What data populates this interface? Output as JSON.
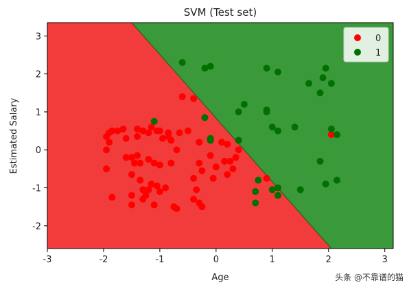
{
  "chart_data": {
    "type": "scatter",
    "title": "SVM (Test set)",
    "xlabel": "Age",
    "ylabel": "Estimated Salary",
    "xlim": [
      -3,
      3.15
    ],
    "ylim": [
      -2.6,
      3.35
    ],
    "xticks": [
      "-3",
      "-2",
      "-1",
      "0",
      "1",
      "2",
      "3"
    ],
    "xtick_values": [
      -3,
      -2,
      -1,
      0,
      1,
      2,
      3
    ],
    "yticks": [
      "-2",
      "-1",
      "0",
      "1",
      "2",
      "3"
    ],
    "ytick_values": [
      -2,
      -1,
      0,
      1,
      2,
      3
    ],
    "grid": false,
    "legend_position": "top-right",
    "decision_boundary": {
      "points": [
        [
          -1.5,
          3.35
        ],
        [
          2.05,
          -2.6
        ]
      ],
      "region_colors": {
        "0": "#f23b3b",
        "1": "#3a9a3a"
      }
    },
    "series": [
      {
        "name": "0",
        "color": "#ff0000",
        "points": [
          [
            -1.9,
            0.45
          ],
          [
            -1.85,
            0.5
          ],
          [
            -1.75,
            0.5
          ],
          [
            -1.65,
            0.55
          ],
          [
            -1.95,
            0.35
          ],
          [
            -1.9,
            0.2
          ],
          [
            -1.95,
            0.0
          ],
          [
            -1.6,
            0.3
          ],
          [
            -1.4,
            0.55
          ],
          [
            -1.4,
            0.35
          ],
          [
            -1.3,
            0.5
          ],
          [
            -1.2,
            0.45
          ],
          [
            -1.15,
            0.6
          ],
          [
            -1.05,
            0.5
          ],
          [
            -1.0,
            0.5
          ],
          [
            -0.95,
            0.3
          ],
          [
            -0.85,
            0.35
          ],
          [
            -0.85,
            0.45
          ],
          [
            -0.8,
            0.25
          ],
          [
            -0.65,
            0.45
          ],
          [
            -1.6,
            -0.2
          ],
          [
            -1.5,
            -0.2
          ],
          [
            -1.4,
            -0.15
          ],
          [
            -1.35,
            -0.35
          ],
          [
            -1.45,
            -0.35
          ],
          [
            -1.2,
            -0.25
          ],
          [
            -1.1,
            -0.35
          ],
          [
            -1.0,
            -0.4
          ],
          [
            -0.8,
            -0.35
          ],
          [
            -0.7,
            0.0
          ],
          [
            -1.95,
            -0.5
          ],
          [
            -1.5,
            -0.65
          ],
          [
            -1.35,
            -0.8
          ],
          [
            -1.3,
            -1.05
          ],
          [
            -1.2,
            -1.05
          ],
          [
            -1.15,
            -0.9
          ],
          [
            -1.05,
            -0.95
          ],
          [
            -1.0,
            -1.1
          ],
          [
            -0.9,
            -1.0
          ],
          [
            -1.85,
            -1.25
          ],
          [
            -1.5,
            -1.2
          ],
          [
            -1.5,
            -1.45
          ],
          [
            -1.3,
            -1.3
          ],
          [
            -1.25,
            -1.2
          ],
          [
            -1.1,
            -1.45
          ],
          [
            -0.75,
            -1.5
          ],
          [
            -0.7,
            -1.55
          ],
          [
            -0.4,
            -1.3
          ],
          [
            -0.3,
            -1.4
          ],
          [
            -0.25,
            -1.5
          ],
          [
            -0.6,
            1.4
          ],
          [
            -0.4,
            1.35
          ],
          [
            -0.5,
            0.5
          ],
          [
            -0.3,
            0.2
          ],
          [
            -0.3,
            -0.35
          ],
          [
            -0.25,
            -0.55
          ],
          [
            -0.4,
            -0.75
          ],
          [
            -0.35,
            -1.05
          ],
          [
            -0.1,
            -0.15
          ],
          [
            0.1,
            0.2
          ],
          [
            0.2,
            0.15
          ],
          [
            0.15,
            -0.3
          ],
          [
            0.25,
            -0.3
          ],
          [
            0.3,
            -0.5
          ],
          [
            0.2,
            -0.65
          ],
          [
            0.35,
            -0.2
          ],
          [
            0.4,
            0.0
          ],
          [
            0.0,
            -0.45
          ],
          [
            -0.05,
            -0.75
          ],
          [
            0.9,
            -0.75
          ],
          [
            2.05,
            0.4
          ]
        ]
      },
      {
        "name": "1",
        "color": "#007000",
        "points": [
          [
            -0.6,
            2.3
          ],
          [
            -0.2,
            2.15
          ],
          [
            -0.1,
            2.2
          ],
          [
            -0.2,
            0.85
          ],
          [
            -0.1,
            0.3
          ],
          [
            -0.1,
            0.25
          ],
          [
            -1.1,
            0.75
          ],
          [
            0.4,
            1.0
          ],
          [
            0.5,
            1.2
          ],
          [
            0.4,
            0.25
          ],
          [
            0.9,
            2.15
          ],
          [
            1.1,
            2.05
          ],
          [
            0.9,
            1.05
          ],
          [
            0.9,
            1.0
          ],
          [
            1.0,
            0.6
          ],
          [
            1.1,
            0.5
          ],
          [
            1.4,
            0.6
          ],
          [
            1.65,
            1.75
          ],
          [
            1.85,
            1.5
          ],
          [
            1.95,
            2.15
          ],
          [
            1.9,
            1.9
          ],
          [
            2.05,
            1.75
          ],
          [
            2.05,
            0.55
          ],
          [
            2.15,
            0.4
          ],
          [
            1.85,
            -0.3
          ],
          [
            1.95,
            -0.9
          ],
          [
            2.15,
            -0.8
          ],
          [
            1.5,
            -1.05
          ],
          [
            1.1,
            -1.0
          ],
          [
            1.1,
            -1.2
          ],
          [
            1.0,
            -1.05
          ],
          [
            0.75,
            -0.8
          ],
          [
            0.7,
            -1.1
          ],
          [
            0.7,
            -1.4
          ]
        ]
      }
    ]
  },
  "watermark": "头条 @不靠谱的猫"
}
